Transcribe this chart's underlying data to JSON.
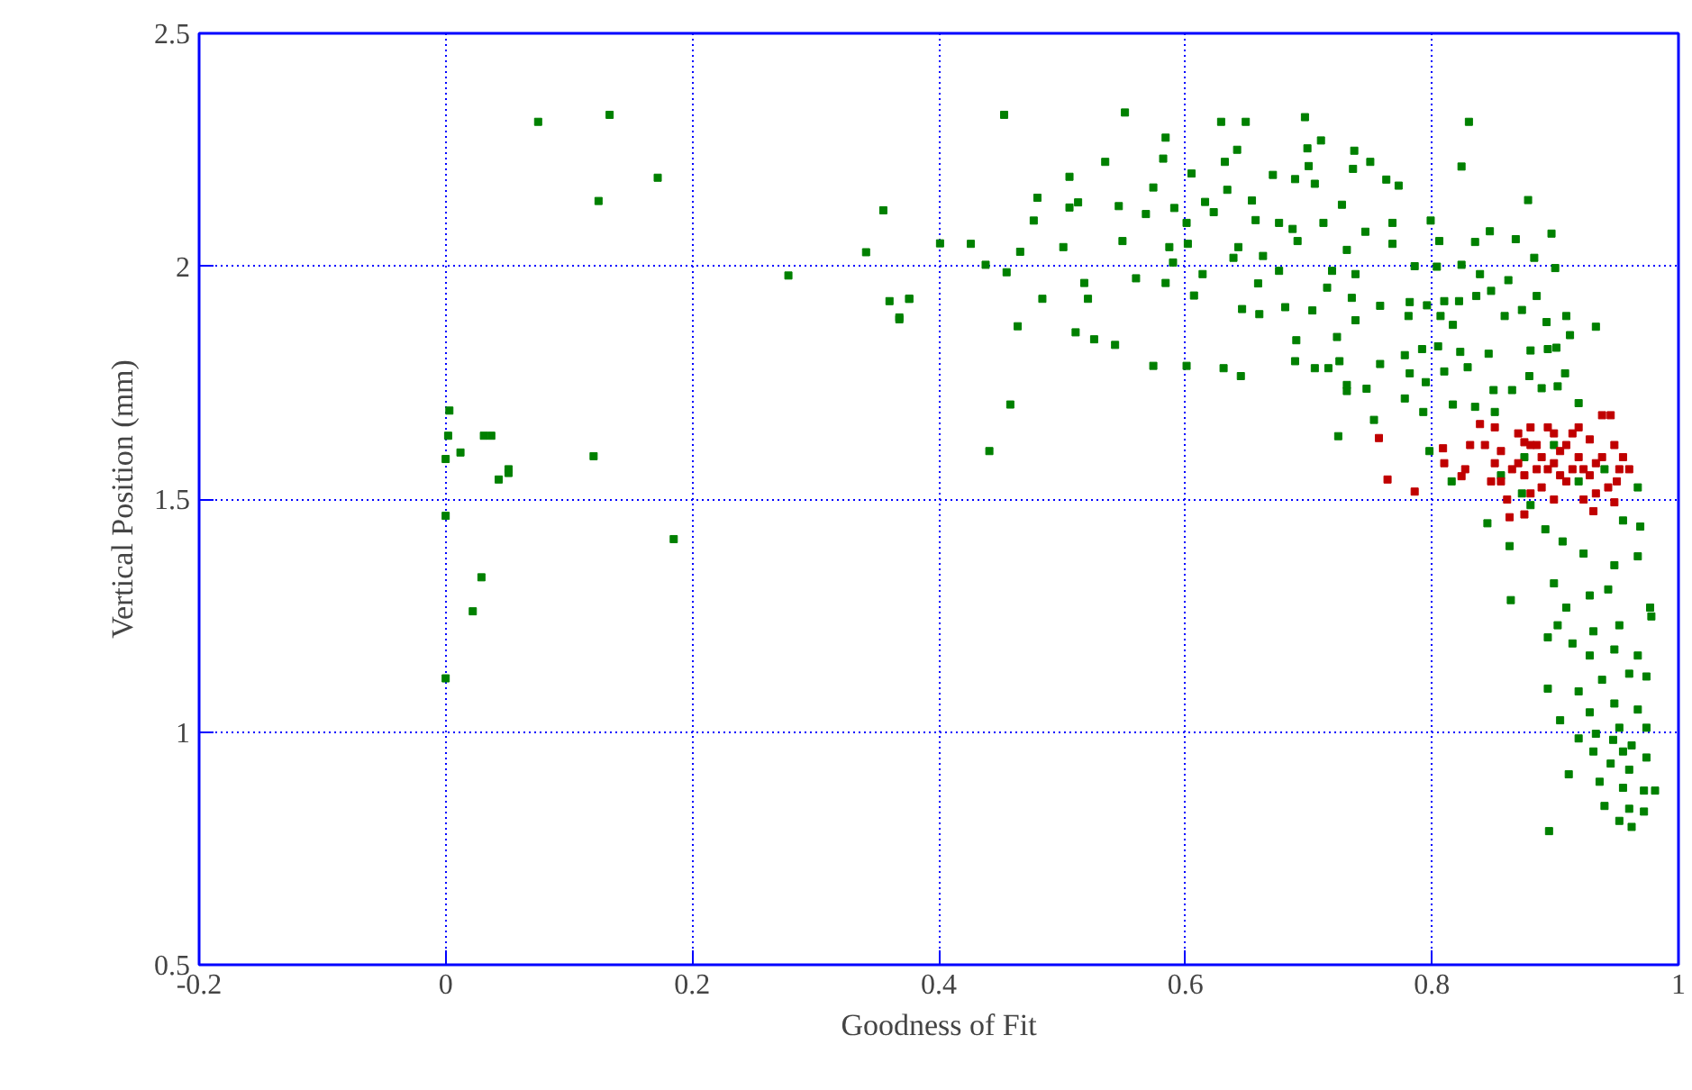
{
  "chart_data": {
    "type": "scatter",
    "xlabel": "Goodness of Fit",
    "ylabel": "Vertical Position (mm)",
    "xlim": [
      -0.2,
      1
    ],
    "ylim": [
      0.5,
      2.5
    ],
    "xticks": [
      -0.2,
      0,
      0.2,
      0.4,
      0.6,
      0.8,
      1
    ],
    "yticks": [
      0.5,
      1,
      1.5,
      2,
      2.5
    ],
    "grid": true,
    "marker": "square",
    "series": [
      {
        "color": "#008000",
        "x": [
          0.075,
          0.133,
          0.172,
          0.124,
          0.355,
          0.341,
          0.278,
          0.36,
          0.376,
          0.368,
          0.003,
          0.002,
          0.031,
          0.037,
          0.012,
          0,
          0.12,
          0.051,
          0.051,
          0.043,
          0,
          0.185,
          0.029,
          0.022,
          0,
          0.453,
          0.551,
          0.629,
          0.649,
          0.697,
          0.83,
          0.584,
          0.642,
          0.71,
          0.699,
          0.737,
          0.535,
          0.582,
          0.506,
          0.605,
          0.632,
          0.671,
          0.689,
          0.7,
          0.736,
          0.75,
          0.824,
          0.48,
          0.513,
          0.546,
          0.574,
          0.591,
          0.616,
          0.634,
          0.654,
          0.676,
          0.705,
          0.727,
          0.763,
          0.773,
          0.878,
          0.477,
          0.506,
          0.568,
          0.601,
          0.623,
          0.657,
          0.687,
          0.712,
          0.746,
          0.768,
          0.799,
          0.897,
          0.401,
          0.426,
          0.466,
          0.501,
          0.549,
          0.587,
          0.602,
          0.643,
          0.663,
          0.691,
          0.731,
          0.768,
          0.806,
          0.835,
          0.847,
          0.868,
          0.438,
          0.455,
          0.56,
          0.59,
          0.614,
          0.639,
          0.676,
          0.719,
          0.738,
          0.786,
          0.804,
          0.824,
          0.839,
          0.883,
          0.9,
          0.376,
          0.368,
          0.484,
          0.518,
          0.521,
          0.584,
          0.607,
          0.646,
          0.659,
          0.681,
          0.715,
          0.735,
          0.758,
          0.782,
          0.796,
          0.81,
          0.822,
          0.836,
          0.848,
          0.862,
          0.885,
          0.464,
          0.511,
          0.526,
          0.543,
          0.66,
          0.703,
          0.723,
          0.738,
          0.781,
          0.807,
          0.817,
          0.859,
          0.873,
          0.893,
          0.909,
          0.933,
          0.912,
          0.458,
          0.441,
          0.574,
          0.601,
          0.631,
          0.645,
          0.69,
          0.689,
          0.705,
          0.716,
          0.725,
          0.758,
          0.778,
          0.792,
          0.805,
          0.823,
          0.846,
          0.88,
          0.894,
          0.901,
          0.731,
          0.731,
          0.747,
          0.782,
          0.795,
          0.81,
          0.829,
          0.85,
          0.865,
          0.879,
          0.889,
          0.902,
          0.908,
          0.724,
          0.753,
          0.778,
          0.793,
          0.817,
          0.835,
          0.851,
          0.919,
          0.798,
          0.816,
          0.845,
          0.863,
          0.864,
          0.88,
          0.892,
          0.906,
          0.923,
          0.948,
          0.967,
          0.969,
          0.955,
          0.899,
          0.909,
          0.928,
          0.943,
          0.977,
          0.978,
          0.902,
          0.914,
          0.931,
          0.952,
          0.894,
          0.928,
          0.948,
          0.967,
          0.919,
          0.894,
          0.938,
          0.96,
          0.974,
          0.904,
          0.928,
          0.948,
          0.967,
          0.974,
          0.919,
          0.933,
          0.952,
          0.962,
          0.931,
          0.945,
          0.96,
          0.974,
          0.911,
          0.936,
          0.955,
          0.972,
          0.981,
          0.94,
          0.96,
          0.972,
          0.952,
          0.962,
          0.895,
          0.947,
          0.955,
          0.856,
          0.875,
          0.899,
          0.919,
          0.94,
          0.967,
          0.873
        ],
        "values": [
          2.31,
          2.325,
          2.19,
          2.14,
          2.12,
          2.03,
          1.98,
          1.925,
          1.93,
          1.89,
          1.69,
          1.636,
          1.636,
          1.636,
          1.6,
          1.586,
          1.592,
          1.564,
          1.556,
          1.542,
          1.464,
          1.414,
          1.332,
          1.259,
          1.115,
          2.325,
          2.33,
          2.31,
          2.31,
          2.32,
          2.31,
          2.276,
          2.25,
          2.27,
          2.253,
          2.248,
          2.224,
          2.231,
          2.192,
          2.199,
          2.224,
          2.196,
          2.187,
          2.215,
          2.209,
          2.224,
          2.214,
          2.147,
          2.137,
          2.129,
          2.169,
          2.125,
          2.138,
          2.164,
          2.141,
          2.093,
          2.177,
          2.132,
          2.186,
          2.173,
          2.142,
          2.098,
          2.126,
          2.112,
          2.093,
          2.116,
          2.099,
          2.08,
          2.093,
          2.074,
          2.093,
          2.098,
          2.07,
          2.049,
          2.048,
          2.031,
          2.041,
          2.054,
          2.041,
          2.048,
          2.041,
          2.022,
          2.054,
          2.035,
          2.048,
          2.054,
          2.052,
          2.075,
          2.058,
          2.003,
          1.987,
          1.974,
          2.008,
          1.983,
          2.018,
          1.99,
          1.99,
          1.983,
          2,
          1.999,
          2.003,
          1.983,
          2.018,
          1.996,
          1.93,
          1.886,
          1.93,
          1.964,
          1.93,
          1.964,
          1.937,
          1.908,
          1.963,
          1.912,
          1.954,
          1.932,
          1.915,
          1.923,
          1.916,
          1.925,
          1.925,
          1.936,
          1.947,
          1.97,
          1.936,
          1.871,
          1.858,
          1.843,
          1.831,
          1.897,
          1.905,
          1.848,
          1.884,
          1.893,
          1.893,
          1.874,
          1.893,
          1.906,
          1.88,
          1.893,
          1.87,
          1.852,
          1.703,
          1.603,
          1.786,
          1.786,
          1.781,
          1.764,
          1.841,
          1.796,
          1.781,
          1.781,
          1.796,
          1.79,
          1.809,
          1.822,
          1.828,
          1.816,
          1.812,
          1.819,
          1.822,
          1.825,
          1.745,
          1.732,
          1.737,
          1.77,
          1.751,
          1.774,
          1.783,
          1.734,
          1.734,
          1.764,
          1.738,
          1.742,
          1.77,
          1.635,
          1.67,
          1.716,
          1.687,
          1.703,
          1.698,
          1.687,
          1.706,
          1.603,
          1.538,
          1.448,
          1.399,
          1.283,
          1.487,
          1.435,
          1.409,
          1.383,
          1.358,
          1.377,
          1.441,
          1.454,
          1.319,
          1.267,
          1.293,
          1.306,
          1.267,
          1.248,
          1.229,
          1.19,
          1.216,
          1.229,
          1.203,
          1.164,
          1.177,
          1.164,
          1.087,
          1.093,
          1.112,
          1.125,
          1.119,
          1.025,
          1.042,
          1.061,
          1.048,
          1.009,
          0.986,
          0.996,
          1.009,
          0.971,
          0.958,
          0.932,
          0.919,
          0.945,
          0.909,
          0.893,
          0.88,
          0.874,
          0.874,
          0.841,
          0.835,
          0.829,
          0.809,
          0.796,
          0.787,
          0.983,
          0.958,
          1.551,
          1.59,
          1.616,
          1.538,
          1.564,
          1.525,
          1.512
        ]
      },
      {
        "color": "#c00000",
        "x": [
          0.757,
          0.764,
          0.786,
          0.809,
          0.81,
          0.827,
          0.824,
          0.839,
          0.843,
          0.851,
          0.856,
          0.861,
          0.863,
          0.875,
          0.87,
          0.88,
          0.885,
          0.889,
          0.894,
          0.899,
          0.904,
          0.909,
          0.914,
          0.919,
          0.923,
          0.928,
          0.933,
          0.938,
          0.945,
          0.948,
          0.95,
          0.955,
          0.96,
          0.948,
          0.923,
          0.931,
          0.899,
          0.88,
          0.865,
          0.856,
          0.851,
          0.831,
          0.87,
          0.889,
          0.909,
          0.933,
          0.943,
          0.875,
          0.894,
          0.914,
          0.928,
          0.899,
          0.88,
          0.919,
          0.848,
          0.885,
          0.904,
          0.938,
          0.952,
          0.875
        ],
        "values": [
          1.631,
          1.542,
          1.516,
          1.609,
          1.577,
          1.564,
          1.549,
          1.661,
          1.616,
          1.577,
          1.538,
          1.499,
          1.461,
          1.467,
          1.641,
          1.616,
          1.564,
          1.525,
          1.654,
          1.577,
          1.551,
          1.616,
          1.641,
          1.59,
          1.564,
          1.628,
          1.512,
          1.68,
          1.68,
          1.616,
          1.538,
          1.59,
          1.564,
          1.493,
          1.499,
          1.474,
          1.499,
          1.512,
          1.564,
          1.603,
          1.654,
          1.616,
          1.577,
          1.59,
          1.538,
          1.577,
          1.525,
          1.551,
          1.564,
          1.564,
          1.551,
          1.641,
          1.654,
          1.654,
          1.538,
          1.616,
          1.603,
          1.59,
          1.564,
          1.622
        ]
      }
    ]
  }
}
